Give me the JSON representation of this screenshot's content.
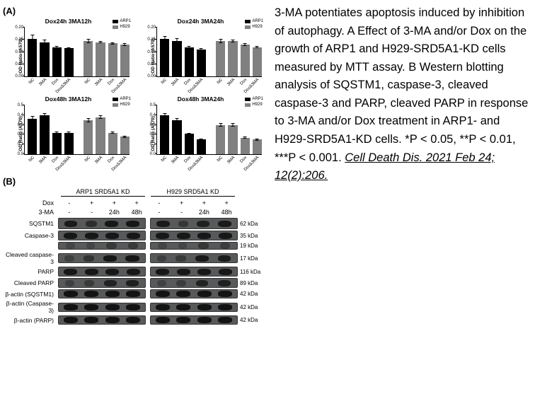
{
  "rightText": {
    "p1": "3-MA potentiates apoptosis induced by inhibition of autophagy. A Effect of 3-MA and/or Dox on the growth of ARP1 and H929-SRD5A1-KD cells measured by MTT assay. B Western blotting analysis of SQSTM1, caspase-3, cleaved caspase-3 and PARP, cleaved PARP in response to 3-MA and/or Dox treatment in ARP1- and H929-SRD5A1-KD cells. *P < 0.05, **P < 0.01, ***P < 0.001. ",
    "citation": "Cell Death Dis. 2021 Feb 24; 12(2):206."
  },
  "panelA": {
    "label": "(A)",
    "ylabel": "OD Ratio (A570)",
    "legend": [
      {
        "label": "ARP1",
        "color": "#000000"
      },
      {
        "label": "H929",
        "color": "#808080"
      }
    ],
    "categories": [
      "NC",
      "3MA",
      "Dox",
      "Dox&3MA",
      "NC",
      "3MA",
      "Dox",
      "Dox&3MA"
    ],
    "charts": [
      {
        "title": "Dox24h 3MA12h",
        "ylim": [
          0,
          0.2
        ],
        "ystep": 0.05,
        "values": [
          0.155,
          0.14,
          0.12,
          0.115,
          0.145,
          0.14,
          0.135,
          0.13
        ],
        "errors": [
          0.015,
          0.01,
          0.005,
          0.005,
          0.008,
          0.005,
          0.005,
          0.005
        ],
        "colors": [
          "#000000",
          "#000000",
          "#000000",
          "#000000",
          "#808080",
          "#808080",
          "#808080",
          "#808080"
        ]
      },
      {
        "title": "Dox24h 3MA24h",
        "ylim": [
          0,
          0.2
        ],
        "ystep": 0.05,
        "values": [
          0.155,
          0.145,
          0.12,
          0.11,
          0.145,
          0.145,
          0.13,
          0.12
        ],
        "errors": [
          0.01,
          0.01,
          0.005,
          0.005,
          0.008,
          0.005,
          0.005,
          0.005
        ],
        "colors": [
          "#000000",
          "#000000",
          "#000000",
          "#000000",
          "#808080",
          "#808080",
          "#808080",
          "#808080"
        ]
      },
      {
        "title": "Dox48h 3MA12h",
        "ylim": [
          0,
          0.5
        ],
        "ystep": 0.1,
        "values": [
          0.36,
          0.4,
          0.22,
          0.22,
          0.35,
          0.38,
          0.22,
          0.18
        ],
        "errors": [
          0.03,
          0.02,
          0.01,
          0.01,
          0.02,
          0.02,
          0.01,
          0.01
        ],
        "colors": [
          "#000000",
          "#000000",
          "#000000",
          "#000000",
          "#808080",
          "#808080",
          "#808080",
          "#808080"
        ]
      },
      {
        "title": "Dox48h 3MA24h",
        "ylim": [
          0,
          0.5
        ],
        "ystep": 0.1,
        "values": [
          0.4,
          0.35,
          0.21,
          0.15,
          0.3,
          0.3,
          0.17,
          0.15
        ],
        "errors": [
          0.02,
          0.02,
          0.01,
          0.01,
          0.02,
          0.02,
          0.01,
          0.01
        ],
        "colors": [
          "#000000",
          "#000000",
          "#000000",
          "#000000",
          "#808080",
          "#808080",
          "#808080",
          "#808080"
        ]
      }
    ]
  },
  "panelB": {
    "label": "(B)",
    "groups": [
      "ARP1 SRD5A1 KD",
      "H929 SRD5A1 KD"
    ],
    "conditions": [
      {
        "label": "Dox",
        "cells": [
          "-",
          "+",
          "+",
          "+",
          "-",
          "+",
          "+",
          "+"
        ]
      },
      {
        "label": "3-MA",
        "cells": [
          "-",
          "-",
          "24h",
          "48h",
          "-",
          "-",
          "24h",
          "48h"
        ]
      }
    ],
    "blots": [
      {
        "label": "SQSTM1",
        "kda": "62 kDa",
        "height": 16,
        "bands": [
          [
            0.85,
            0.5,
            0.9,
            0.9
          ],
          [
            0.85,
            0.35,
            0.75,
            0.85
          ]
        ]
      },
      {
        "label": "Caspase-3",
        "kda": "35 kDa",
        "height": 14,
        "bands": [
          [
            0.9,
            0.9,
            0.9,
            0.9
          ],
          [
            0.9,
            0.9,
            0.9,
            0.9
          ]
        ]
      },
      {
        "label": "",
        "kda": "19 kDa",
        "height": 11,
        "bands": [
          [
            0.1,
            0.1,
            0.3,
            0.3
          ],
          [
            0.1,
            0.1,
            0.35,
            0.25
          ]
        ]
      },
      {
        "label": "Cleaved caspase-3",
        "kda": "17 kDa",
        "height": 14,
        "bands": [
          [
            0.2,
            0.4,
            0.9,
            0.9
          ],
          [
            0.2,
            0.3,
            0.85,
            0.8
          ]
        ]
      },
      {
        "label": "PARP",
        "kda": "116 kDa",
        "height": 14,
        "bands": [
          [
            0.9,
            0.9,
            0.9,
            0.9
          ],
          [
            0.9,
            0.9,
            0.9,
            0.9
          ]
        ]
      },
      {
        "label": "Cleaved PARP",
        "kda": "89 kDa",
        "height": 14,
        "bands": [
          [
            0.2,
            0.3,
            0.7,
            0.75
          ],
          [
            0.15,
            0.25,
            0.7,
            0.75
          ]
        ]
      },
      {
        "label": "β-actin (SQSTM1)",
        "kda": "42 kDa",
        "height": 13,
        "bands": [
          [
            0.95,
            0.95,
            0.95,
            0.95
          ],
          [
            0.95,
            0.95,
            0.95,
            0.95
          ]
        ]
      },
      {
        "label": "β-actin (Caspase-3)",
        "kda": "42 kDa",
        "height": 13,
        "bands": [
          [
            0.95,
            0.95,
            0.95,
            0.95
          ],
          [
            0.95,
            0.95,
            0.95,
            0.95
          ]
        ]
      },
      {
        "label": "β-actin (PARP)",
        "kda": "42 kDa",
        "height": 13,
        "bands": [
          [
            0.95,
            0.95,
            0.95,
            0.95
          ],
          [
            0.95,
            0.95,
            0.95,
            0.95
          ]
        ]
      }
    ]
  }
}
